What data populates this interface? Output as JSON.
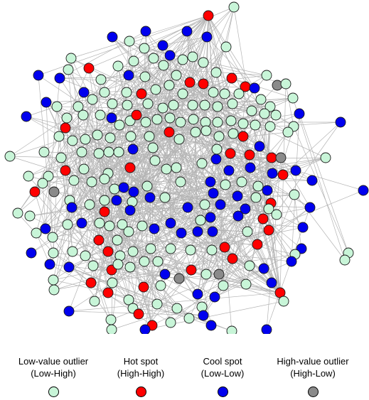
{
  "colors": {
    "low_high": "#c8f5d8",
    "high_high": "#ff0000",
    "low_low": "#0000ee",
    "high_low": "#8a8a8a",
    "edge": "#b4b4b4",
    "node_stroke": "#1a1a1a"
  },
  "legend": {
    "items": [
      {
        "key": "low_high",
        "line1": "Low-value outlier",
        "line2": "(Low-High)"
      },
      {
        "key": "high_high",
        "line1": "Hot spot",
        "line2": "(High-High)"
      },
      {
        "key": "low_low",
        "line1": "Cool spot",
        "line2": "(Low-Low)"
      },
      {
        "key": "high_low",
        "line1": "High-value outlier",
        "line2": "(High-Low)"
      }
    ]
  }
}
